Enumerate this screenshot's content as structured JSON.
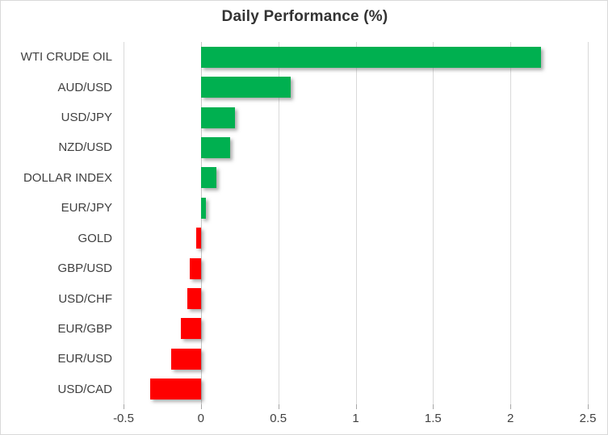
{
  "chart_data": {
    "type": "bar",
    "orientation": "horizontal",
    "title": "Daily Performance (%)",
    "categories": [
      "WTI CRUDE OIL",
      "AUD/USD",
      "USD/JPY",
      "NZD/USD",
      "DOLLAR INDEX",
      "EUR/JPY",
      "GOLD",
      "GBP/USD",
      "USD/CHF",
      "EUR/GBP",
      "EUR/USD",
      "USD/CAD"
    ],
    "values": [
      2.2,
      0.58,
      0.22,
      0.19,
      0.1,
      0.03,
      -0.03,
      -0.07,
      -0.09,
      -0.13,
      -0.19,
      -0.33
    ],
    "xlabel": "",
    "ylabel": "",
    "xlim": [
      -0.5,
      2.5
    ],
    "x_ticks": [
      -0.5,
      0,
      0.5,
      1,
      1.5,
      2,
      2.5
    ],
    "x_tick_labels": [
      "-0.5",
      "0",
      "0.5",
      "1",
      "1.5",
      "2",
      "2.5"
    ],
    "grid": "vertical-only",
    "legend": "none",
    "bar_shadow": true,
    "colors": {
      "positive": "#00B050",
      "negative": "#FF0000",
      "gridline": "#D9D9D9",
      "zero_line": "#C6C6C6",
      "tick": "#A6A6A6",
      "title_text": "#333333",
      "label_text": "#404040",
      "axis_label_text": "#404040",
      "border": "#D9D9D9",
      "background": "#FFFFFF"
    }
  }
}
